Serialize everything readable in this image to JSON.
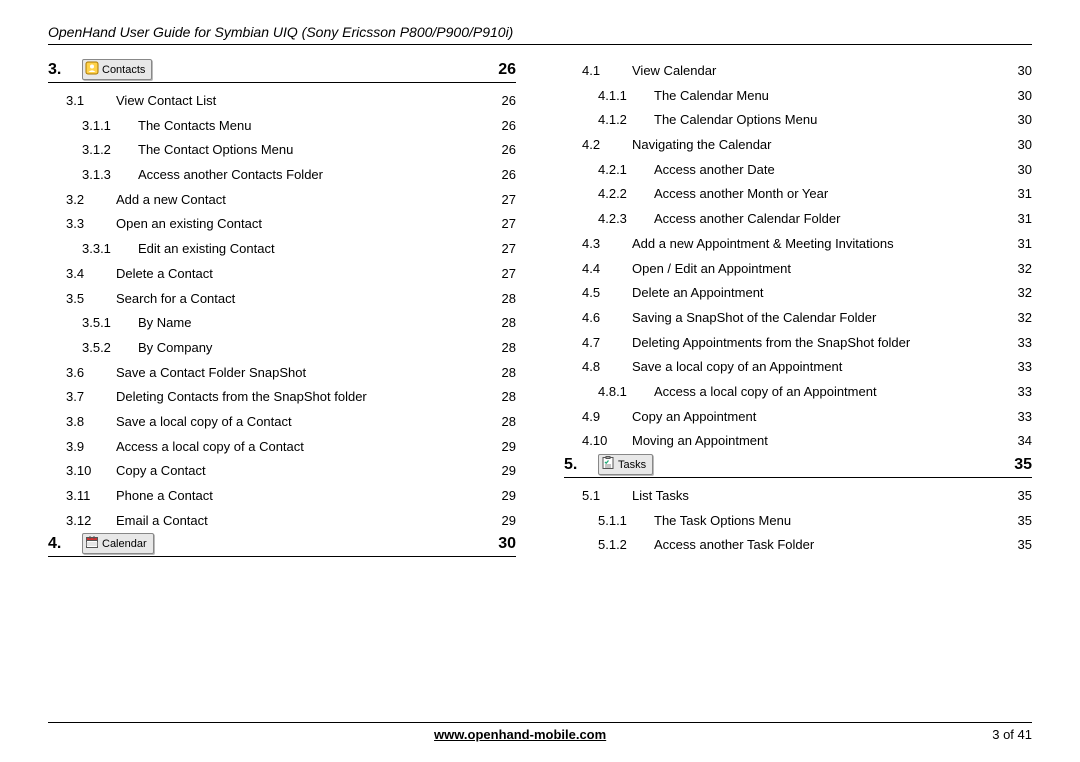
{
  "header": "OpenHand User Guide for Symbian UIQ (Sony Ericsson P800/P900/P910i)",
  "footer": {
    "url": "www.openhand-mobile.com",
    "page": "3 of 41"
  },
  "left": {
    "sections": [
      {
        "num": "3.",
        "icon_label": "Contacts",
        "icon_type": "contacts",
        "page": "26",
        "rows": [
          {
            "lvl": 1,
            "num": "3.1",
            "title": "View Contact List",
            "pg": "26"
          },
          {
            "lvl": 2,
            "num": "3.1.1",
            "title": "The Contacts Menu",
            "pg": "26"
          },
          {
            "lvl": 2,
            "num": "3.1.2",
            "title": "The Contact Options Menu",
            "pg": "26"
          },
          {
            "lvl": 2,
            "num": "3.1.3",
            "title": "Access another Contacts Folder",
            "pg": "26"
          },
          {
            "lvl": 1,
            "num": "3.2",
            "title": "Add a new Contact",
            "pg": "27"
          },
          {
            "lvl": 1,
            "num": "3.3",
            "title": "Open an existing Contact",
            "pg": "27"
          },
          {
            "lvl": 2,
            "num": "3.3.1",
            "title": "Edit an existing Contact",
            "pg": "27"
          },
          {
            "lvl": 1,
            "num": "3.4",
            "title": "Delete a Contact",
            "pg": "27"
          },
          {
            "lvl": 1,
            "num": "3.5",
            "title": "Search for a Contact",
            "pg": "28"
          },
          {
            "lvl": 2,
            "num": "3.5.1",
            "title": "By Name",
            "pg": "28"
          },
          {
            "lvl": 2,
            "num": "3.5.2",
            "title": "By Company",
            "pg": "28"
          },
          {
            "lvl": 1,
            "num": "3.6",
            "title": "Save a Contact Folder SnapShot",
            "pg": "28"
          },
          {
            "lvl": 1,
            "num": "3.7",
            "title": "Deleting Contacts from the SnapShot folder",
            "pg": "28"
          },
          {
            "lvl": 1,
            "num": "3.8",
            "title": "Save a local copy of a Contact",
            "pg": "28"
          },
          {
            "lvl": 1,
            "num": "3.9",
            "title": "Access a local copy of a Contact",
            "pg": "29"
          },
          {
            "lvl": 1,
            "num": "3.10",
            "title": "Copy a Contact",
            "pg": "29"
          },
          {
            "lvl": 1,
            "num": "3.11",
            "title": "Phone a Contact",
            "pg": "29"
          },
          {
            "lvl": 1,
            "num": "3.12",
            "title": "Email a Contact",
            "pg": "29"
          }
        ]
      },
      {
        "num": "4.",
        "icon_label": "Calendar",
        "icon_type": "calendar",
        "page": "30",
        "rows": []
      }
    ]
  },
  "right": {
    "preRows": [
      {
        "lvl": 1,
        "num": "4.1",
        "title": "View Calendar",
        "pg": "30"
      },
      {
        "lvl": 2,
        "num": "4.1.1",
        "title": "The Calendar Menu",
        "pg": "30"
      },
      {
        "lvl": 2,
        "num": "4.1.2",
        "title": "The Calendar Options Menu",
        "pg": "30"
      },
      {
        "lvl": 1,
        "num": "4.2",
        "title": "Navigating the Calendar",
        "pg": "30"
      },
      {
        "lvl": 2,
        "num": "4.2.1",
        "title": "Access another Date",
        "pg": "30"
      },
      {
        "lvl": 2,
        "num": "4.2.2",
        "title": "Access another Month or Year",
        "pg": "31"
      },
      {
        "lvl": 2,
        "num": "4.2.3",
        "title": "Access another Calendar Folder",
        "pg": "31"
      },
      {
        "lvl": 1,
        "num": "4.3",
        "title": "Add a new Appointment & Meeting Invitations",
        "pg": "31"
      },
      {
        "lvl": 1,
        "num": "4.4",
        "title": "Open / Edit an Appointment",
        "pg": "32"
      },
      {
        "lvl": 1,
        "num": "4.5",
        "title": "Delete an Appointment",
        "pg": "32"
      },
      {
        "lvl": 1,
        "num": "4.6",
        "title": "Saving a SnapShot of the Calendar Folder",
        "pg": "32"
      },
      {
        "lvl": 1,
        "num": "4.7",
        "title": "Deleting Appointments from the SnapShot folder",
        "pg": "33"
      },
      {
        "lvl": 1,
        "num": "4.8",
        "title": "Save a local copy of an Appointment",
        "pg": "33"
      },
      {
        "lvl": 2,
        "num": "4.8.1",
        "title": "Access a local copy of an Appointment",
        "pg": "33"
      },
      {
        "lvl": 1,
        "num": "4.9",
        "title": "Copy an Appointment",
        "pg": "33"
      },
      {
        "lvl": 1,
        "num": "4.10",
        "title": "Moving an Appointment",
        "pg": "34"
      }
    ],
    "sections": [
      {
        "num": "5.",
        "icon_label": "Tasks",
        "icon_type": "tasks",
        "page": "35",
        "rows": [
          {
            "lvl": 1,
            "num": "5.1",
            "title": "List Tasks",
            "pg": "35"
          },
          {
            "lvl": 2,
            "num": "5.1.1",
            "title": "The Task Options Menu",
            "pg": "35"
          },
          {
            "lvl": 2,
            "num": "5.1.2",
            "title": "Access another Task Folder",
            "pg": "35"
          }
        ]
      }
    ]
  },
  "icon_colors": {
    "contacts_bg": "#ffd24a",
    "calendar_bg": "#d9d9d9",
    "tasks_bg": "#d9d9d9",
    "button_bg": "#e8e8e8",
    "button_border": "#888888"
  }
}
